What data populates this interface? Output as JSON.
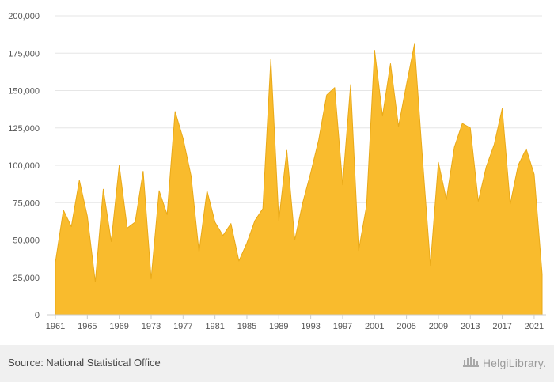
{
  "footer": {
    "source": "Source: National Statistical Office",
    "logo_text": "HelgiLibrary."
  },
  "colors": {
    "area_fill": "#f9bb2d",
    "area_stroke": "#e9a918",
    "grid": "#e6e6e6",
    "axis": "#cccccc",
    "footer_bg": "#f0f0f0"
  },
  "chart_data": {
    "type": "area",
    "x": [
      1961,
      1962,
      1963,
      1964,
      1965,
      1966,
      1967,
      1968,
      1969,
      1970,
      1971,
      1972,
      1973,
      1974,
      1975,
      1976,
      1977,
      1978,
      1979,
      1980,
      1981,
      1982,
      1983,
      1984,
      1985,
      1986,
      1987,
      1988,
      1989,
      1990,
      1991,
      1992,
      1993,
      1994,
      1995,
      1996,
      1997,
      1998,
      1999,
      2000,
      2001,
      2002,
      2003,
      2004,
      2005,
      2006,
      2007,
      2008,
      2009,
      2010,
      2011,
      2012,
      2013,
      2014,
      2015,
      2016,
      2017,
      2018,
      2019,
      2020,
      2021,
      2022
    ],
    "values": [
      35000,
      70000,
      59000,
      90000,
      66000,
      22000,
      84000,
      49000,
      100000,
      58000,
      62000,
      96000,
      24000,
      83000,
      67000,
      136000,
      118000,
      93000,
      42000,
      83000,
      62000,
      53000,
      61000,
      36000,
      48000,
      63000,
      71000,
      171000,
      63000,
      110000,
      50000,
      75000,
      95000,
      117000,
      147000,
      152000,
      87000,
      154000,
      43000,
      73000,
      177000,
      133000,
      168000,
      126000,
      154000,
      181000,
      105000,
      33000,
      102000,
      77000,
      112000,
      128000,
      125000,
      76000,
      99000,
      114000,
      138000,
      74000,
      100000,
      111000,
      94000,
      27000
    ],
    "xticks": [
      "1961",
      "1965",
      "1969",
      "1973",
      "1977",
      "1981",
      "1985",
      "1989",
      "1993",
      "1997",
      "2001",
      "2005",
      "2009",
      "2013",
      "2017",
      "2021"
    ],
    "yticks": [
      "0",
      "25,000",
      "50,000",
      "75,000",
      "100,000",
      "125,000",
      "150,000",
      "175,000",
      "200,000"
    ],
    "ylim": [
      0,
      200000
    ],
    "grid": true,
    "title": "",
    "xlabel": "",
    "ylabel": ""
  }
}
